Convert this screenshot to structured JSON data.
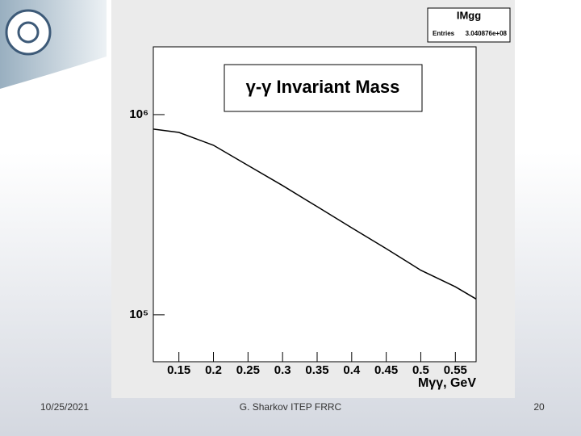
{
  "chart_data": {
    "type": "line",
    "title": "γ-γ Invariant Mass",
    "stats": {
      "name": "IMgg",
      "entries_label": "Entries",
      "entries": {
        "value": 304087600,
        "label": "3.040876e+08"
      }
    },
    "x_label": "Mγγ, GeV",
    "x": [
      0.113,
      0.15,
      0.2,
      0.25,
      0.3,
      0.35,
      0.4,
      0.45,
      0.5,
      0.55,
      0.58
    ],
    "values": [
      846000,
      815000,
      703000,
      557000,
      442000,
      347000,
      272000,
      214000,
      167000,
      138000,
      120000
    ],
    "color": "#000000",
    "log_y": true,
    "xlim": [
      0.113,
      0.58
    ],
    "ylim": [
      58300,
      2180000
    ],
    "xticks": [
      0.15,
      0.2,
      0.25,
      0.3,
      0.35,
      0.4,
      0.45,
      0.5,
      0.55
    ],
    "yticks": [
      {
        "value": 100000,
        "label": "10⁵"
      },
      {
        "value": 1000000,
        "label": "10⁶"
      }
    ]
  },
  "footer": {
    "date": "10/25/2021",
    "author": "G. Sharkov ITEP FRRC",
    "page": "20"
  }
}
